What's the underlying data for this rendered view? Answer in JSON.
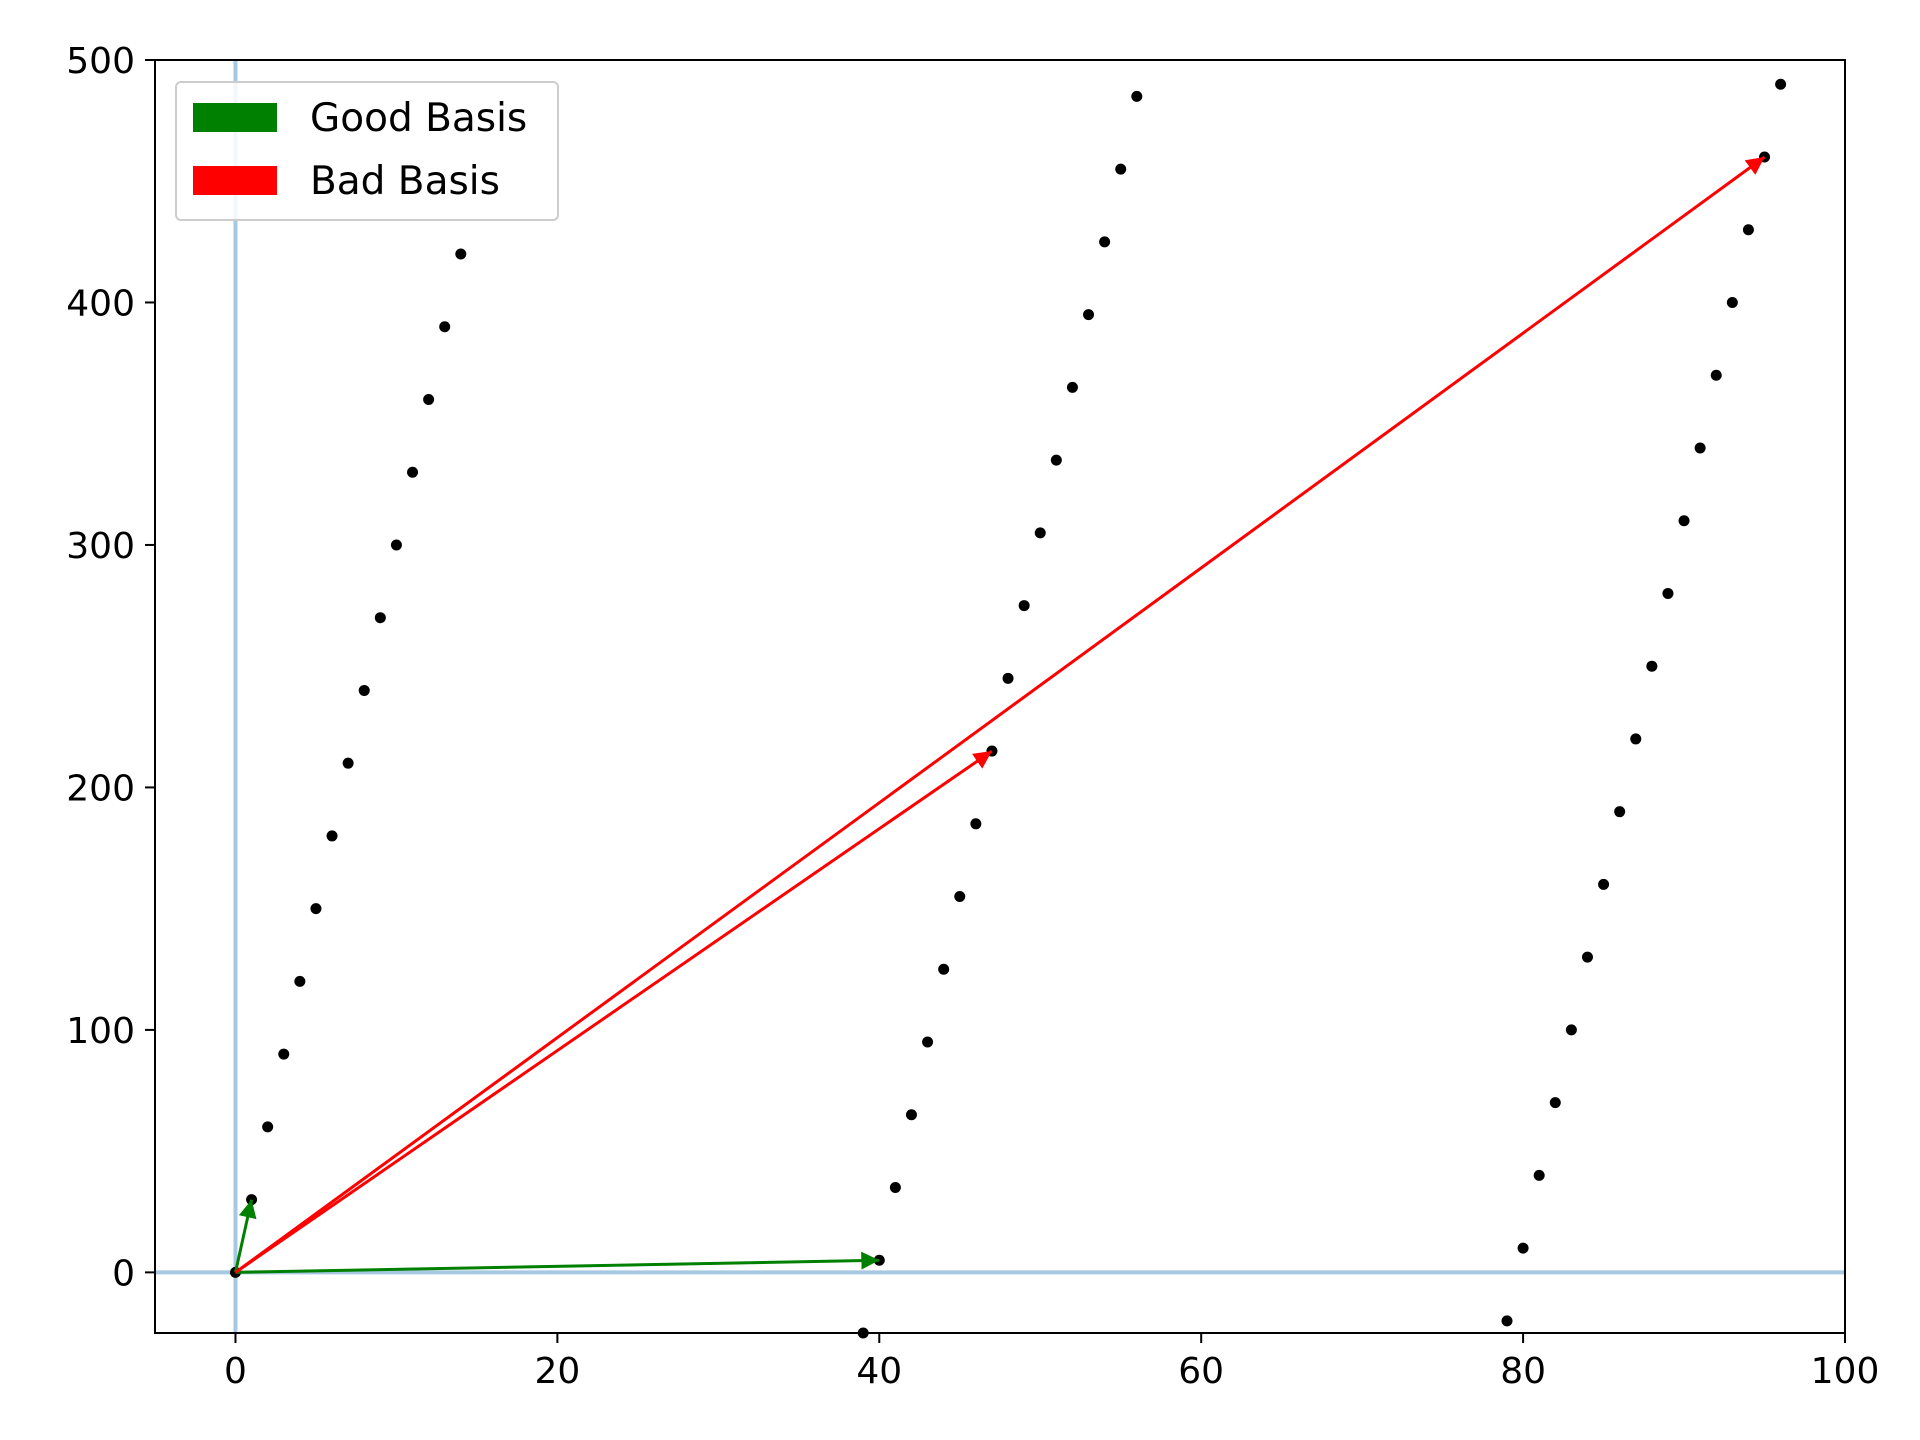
{
  "chart_data": {
    "type": "scatter",
    "xlim": [
      -5,
      100
    ],
    "ylim": [
      -25,
      500
    ],
    "x_ticks": [
      0,
      20,
      40,
      60,
      80,
      100
    ],
    "y_ticks": [
      0,
      100,
      200,
      300,
      400,
      500
    ],
    "grid": false,
    "reference_lines": {
      "color": "#a6c8e0",
      "x": 0,
      "y": 0
    },
    "points": {
      "color": "#000000",
      "x": [
        0,
        1,
        2,
        3,
        4,
        5,
        6,
        7,
        8,
        9,
        10,
        11,
        12,
        13,
        14,
        39,
        40,
        41,
        42,
        43,
        44,
        45,
        46,
        47,
        48,
        49,
        50,
        51,
        52,
        53,
        54,
        55,
        56,
        79,
        80,
        81,
        82,
        83,
        84,
        85,
        86,
        87,
        88,
        89,
        90,
        91,
        92,
        93,
        94,
        95,
        96
      ],
      "y": [
        0,
        30,
        60,
        90,
        120,
        150,
        180,
        210,
        240,
        270,
        300,
        330,
        360,
        390,
        420,
        -25,
        5,
        35,
        65,
        95,
        125,
        155,
        185,
        215,
        245,
        275,
        305,
        335,
        365,
        395,
        425,
        455,
        485,
        -20,
        10,
        40,
        70,
        100,
        130,
        160,
        190,
        220,
        250,
        280,
        310,
        340,
        370,
        400,
        430,
        460,
        490
      ]
    },
    "series": [
      {
        "name": "Good Basis",
        "color": "#008000",
        "vectors": [
          {
            "from": [
              0,
              0
            ],
            "to": [
              1,
              30
            ]
          },
          {
            "from": [
              0,
              0
            ],
            "to": [
              40,
              5
            ]
          }
        ]
      },
      {
        "name": "Bad Basis",
        "color": "#ff0000",
        "vectors": [
          {
            "from": [
              0,
              0
            ],
            "to": [
              47,
              215
            ]
          },
          {
            "from": [
              0,
              0
            ],
            "to": [
              95,
              460
            ]
          }
        ]
      }
    ],
    "legend": {
      "placement": "upper-left",
      "entries": [
        "Good Basis",
        "Bad Basis"
      ]
    }
  }
}
